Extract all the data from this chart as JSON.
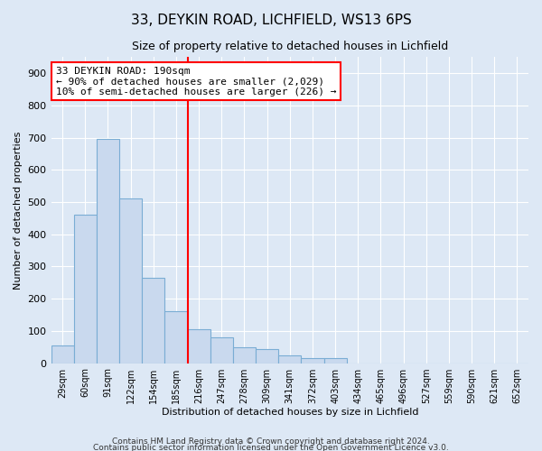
{
  "title_line1": "33, DEYKIN ROAD, LICHFIELD, WS13 6PS",
  "title_line2": "Size of property relative to detached houses in Lichfield",
  "xlabel": "Distribution of detached houses by size in Lichfield",
  "ylabel": "Number of detached properties",
  "categories": [
    "29sqm",
    "60sqm",
    "91sqm",
    "122sqm",
    "154sqm",
    "185sqm",
    "216sqm",
    "247sqm",
    "278sqm",
    "309sqm",
    "341sqm",
    "372sqm",
    "403sqm",
    "434sqm",
    "465sqm",
    "496sqm",
    "527sqm",
    "559sqm",
    "590sqm",
    "621sqm",
    "652sqm"
  ],
  "values": [
    55,
    460,
    695,
    510,
    265,
    160,
    105,
    80,
    50,
    45,
    25,
    15,
    15,
    0,
    0,
    0,
    0,
    0,
    0,
    0,
    0
  ],
  "bar_color": "#c9d9ee",
  "bar_edge_color": "#7aadd4",
  "vline_x_idx": 5,
  "vline_color": "red",
  "ylim": [
    0,
    950
  ],
  "yticks": [
    0,
    100,
    200,
    300,
    400,
    500,
    600,
    700,
    800,
    900
  ],
  "annotation_text": "33 DEYKIN ROAD: 190sqm\n← 90% of detached houses are smaller (2,029)\n10% of semi-detached houses are larger (226) →",
  "annotation_box_color": "white",
  "annotation_box_edgecolor": "red",
  "footer_text1": "Contains HM Land Registry data © Crown copyright and database right 2024.",
  "footer_text2": "Contains public sector information licensed under the Open Government Licence v3.0.",
  "background_color": "#dde8f5",
  "plot_bg_color": "#dde8f5",
  "grid_color": "white",
  "title1_fontsize": 11,
  "title2_fontsize": 9,
  "axis_label_fontsize": 8,
  "tick_fontsize": 8,
  "xtick_fontsize": 7,
  "annotation_fontsize": 8
}
